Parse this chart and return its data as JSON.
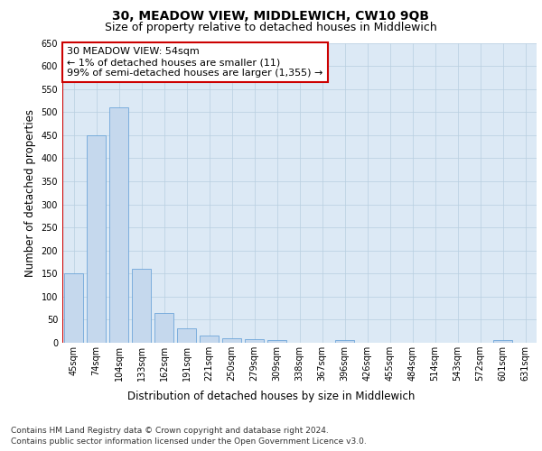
{
  "title": "30, MEADOW VIEW, MIDDLEWICH, CW10 9QB",
  "subtitle": "Size of property relative to detached houses in Middlewich",
  "xlabel": "Distribution of detached houses by size in Middlewich",
  "ylabel": "Number of detached properties",
  "categories": [
    "45sqm",
    "74sqm",
    "104sqm",
    "133sqm",
    "162sqm",
    "191sqm",
    "221sqm",
    "250sqm",
    "279sqm",
    "309sqm",
    "338sqm",
    "367sqm",
    "396sqm",
    "426sqm",
    "455sqm",
    "484sqm",
    "514sqm",
    "543sqm",
    "572sqm",
    "601sqm",
    "631sqm"
  ],
  "values": [
    150,
    450,
    510,
    160,
    65,
    32,
    15,
    10,
    8,
    5,
    0,
    0,
    6,
    0,
    0,
    0,
    0,
    0,
    0,
    6,
    0
  ],
  "bar_color": "#c5d8ed",
  "bar_edge_color": "#5b9bd5",
  "grid_color": "#b8cfe0",
  "bg_color": "#dce9f5",
  "annotation_text": "30 MEADOW VIEW: 54sqm\n← 1% of detached houses are smaller (11)\n99% of semi-detached houses are larger (1,355) →",
  "annotation_box_color": "#ffffff",
  "annotation_border_color": "#cc0000",
  "vline_color": "#cc0000",
  "ylim": [
    0,
    650
  ],
  "yticks": [
    0,
    50,
    100,
    150,
    200,
    250,
    300,
    350,
    400,
    450,
    500,
    550,
    600,
    650
  ],
  "footnote_line1": "Contains HM Land Registry data © Crown copyright and database right 2024.",
  "footnote_line2": "Contains public sector information licensed under the Open Government Licence v3.0.",
  "title_fontsize": 10,
  "subtitle_fontsize": 9,
  "axis_label_fontsize": 8.5,
  "tick_fontsize": 7,
  "annotation_fontsize": 8,
  "footnote_fontsize": 6.5
}
